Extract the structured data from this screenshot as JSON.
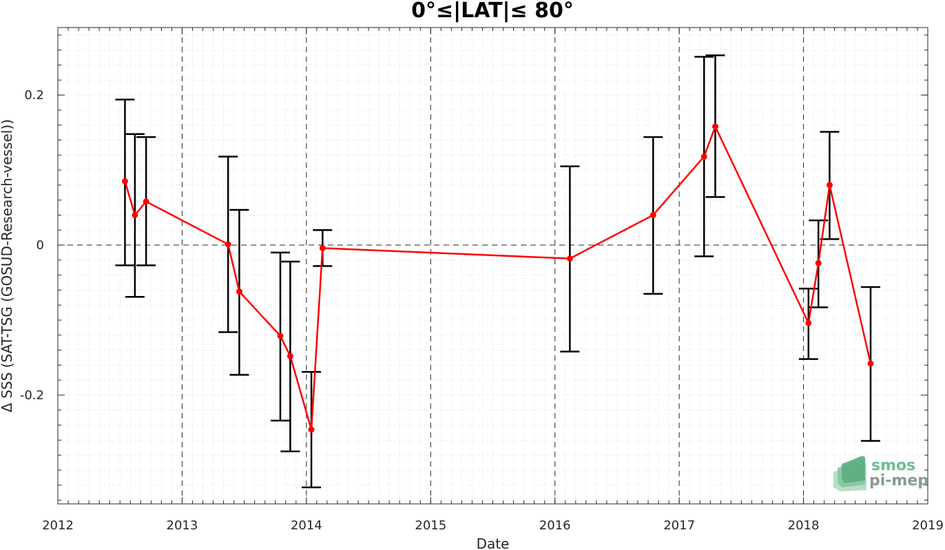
{
  "chart_data": {
    "type": "line",
    "title": "0°≤|LAT|≤ 80°",
    "xlabel": "Date",
    "ylabel": "Δ SSS (SAT-TSG (GOSUD-Research-vessel))",
    "xlim": [
      2012,
      2019
    ],
    "ylim": [
      -0.345,
      0.29
    ],
    "x_ticks": [
      "2012",
      "2013",
      "2014",
      "2015",
      "2016",
      "2017",
      "2018",
      "2019"
    ],
    "y_ticks": [
      {
        "value": 0.2,
        "label": "0.2"
      },
      {
        "value": 0,
        "label": "0"
      },
      {
        "value": -0.2,
        "label": "-0.2"
      }
    ],
    "grid": true,
    "series": [
      {
        "color": "#ff0000",
        "errorbar_color": "#000000",
        "points": [
          {
            "x": 2012.54,
            "y": 0.085,
            "lo": -0.027,
            "hi": 0.194
          },
          {
            "x": 2012.62,
            "y": 0.04,
            "lo": -0.069,
            "hi": 0.148
          },
          {
            "x": 2012.71,
            "y": 0.058,
            "lo": -0.027,
            "hi": 0.144
          },
          {
            "x": 2013.37,
            "y": 0.001,
            "lo": -0.116,
            "hi": 0.118
          },
          {
            "x": 2013.46,
            "y": -0.062,
            "lo": -0.173,
            "hi": 0.047
          },
          {
            "x": 2013.79,
            "y": -0.121,
            "lo": -0.234,
            "hi": -0.01
          },
          {
            "x": 2013.87,
            "y": -0.148,
            "lo": -0.275,
            "hi": -0.022
          },
          {
            "x": 2014.04,
            "y": -0.246,
            "lo": -0.323,
            "hi": -0.169
          },
          {
            "x": 2014.13,
            "y": -0.004,
            "lo": -0.028,
            "hi": 0.02
          },
          {
            "x": 2016.12,
            "y": -0.018,
            "lo": -0.142,
            "hi": 0.105
          },
          {
            "x": 2016.79,
            "y": 0.04,
            "lo": -0.065,
            "hi": 0.144
          },
          {
            "x": 2017.2,
            "y": 0.118,
            "lo": -0.015,
            "hi": 0.251
          },
          {
            "x": 2017.29,
            "y": 0.158,
            "lo": 0.064,
            "hi": 0.253
          },
          {
            "x": 2018.04,
            "y": -0.104,
            "lo": -0.152,
            "hi": -0.058
          },
          {
            "x": 2018.12,
            "y": -0.024,
            "lo": -0.083,
            "hi": 0.033
          },
          {
            "x": 2018.21,
            "y": 0.08,
            "lo": 0.008,
            "hi": 0.151
          },
          {
            "x": 2018.54,
            "y": -0.158,
            "lo": -0.261,
            "hi": -0.056
          }
        ]
      }
    ]
  },
  "logo": {
    "line1": "smos",
    "line2": "pi-mep"
  }
}
